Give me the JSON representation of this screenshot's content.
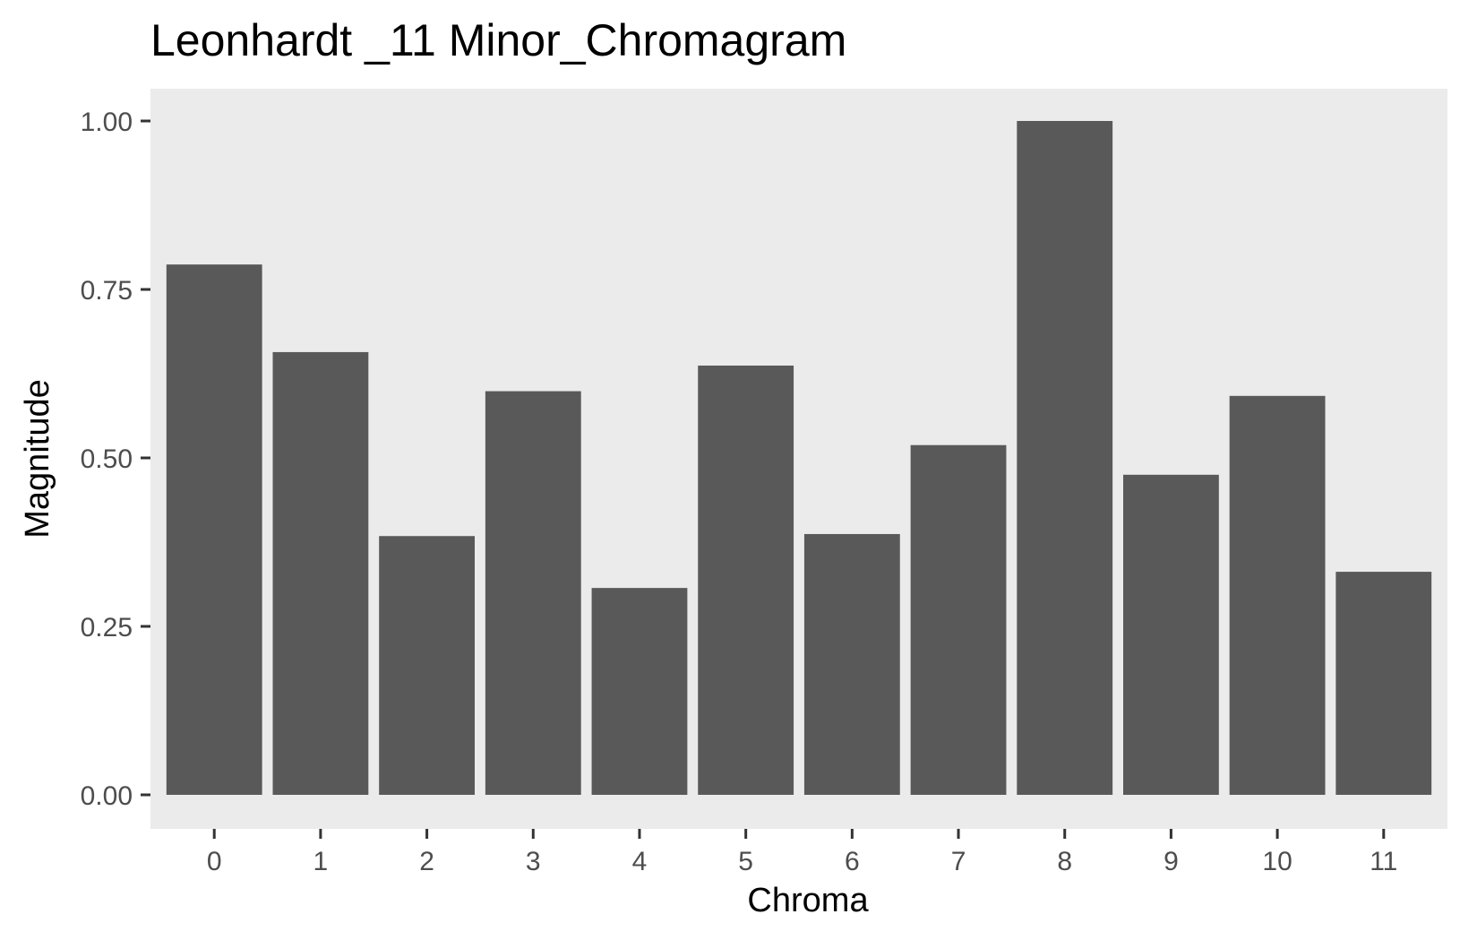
{
  "chart_data": {
    "type": "bar",
    "title": "Leonhardt _11 Minor_Chromagram",
    "xlabel": "Chroma",
    "ylabel": "Magnitude",
    "categories": [
      "0",
      "1",
      "2",
      "3",
      "4",
      "5",
      "6",
      "7",
      "8",
      "9",
      "10",
      "11"
    ],
    "values": [
      0.787,
      0.657,
      0.384,
      0.599,
      0.307,
      0.637,
      0.387,
      0.519,
      1.0,
      0.475,
      0.592,
      0.331
    ],
    "ylim": [
      0,
      1.05
    ],
    "yticks": [
      0,
      0.25,
      0.5,
      0.75,
      1.0
    ],
    "ytick_labels": [
      "0.00",
      "0.25",
      "0.50",
      "0.75",
      "1.00"
    ],
    "grid": false,
    "legend": "none",
    "colors": {
      "panel": "#ebebeb",
      "bar": "#595959",
      "tick": "#333333"
    }
  }
}
